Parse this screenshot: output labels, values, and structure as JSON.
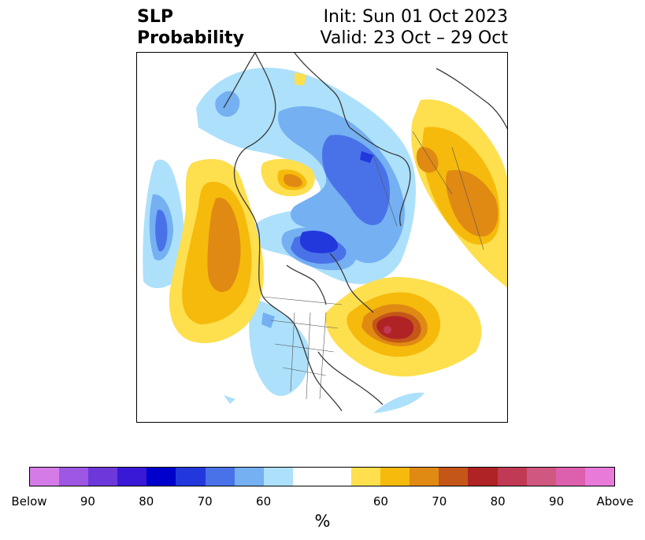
{
  "title": {
    "left_line1": "SLP",
    "left_line2": "Probability",
    "right_line1": "Init: Sun 01 Oct 2023",
    "right_line2": "Valid: 23 Oct – 29 Oct"
  },
  "colorbar": {
    "colors": [
      "#d57be8",
      "#9e57e2",
      "#6d38d9",
      "#3a19d6",
      "#0000cc",
      "#2238dc",
      "#4a72e8",
      "#74b0f2",
      "#ade0fb",
      "#ffffff",
      "#ffffff",
      "#fedf4e",
      "#f5ba0b",
      "#e08a13",
      "#c45618",
      "#b02324",
      "#c13a55",
      "#d0577f",
      "#dc60ad",
      "#e87ada"
    ],
    "tick_labels": [
      "Below",
      "90",
      "80",
      "70",
      "60",
      "60",
      "70",
      "80",
      "90",
      "Above"
    ],
    "unit_label": "%"
  },
  "map": {
    "projection": "north-polar-stereographic",
    "features": [
      "below-normal-slp-north-pacific",
      "above-normal-slp-gulf-of-alaska",
      "below-normal-slp-arctic",
      "above-normal-slp-siberia",
      "above-normal-slp-northwest-atlantic",
      "below-normal-slp-central-us"
    ]
  }
}
